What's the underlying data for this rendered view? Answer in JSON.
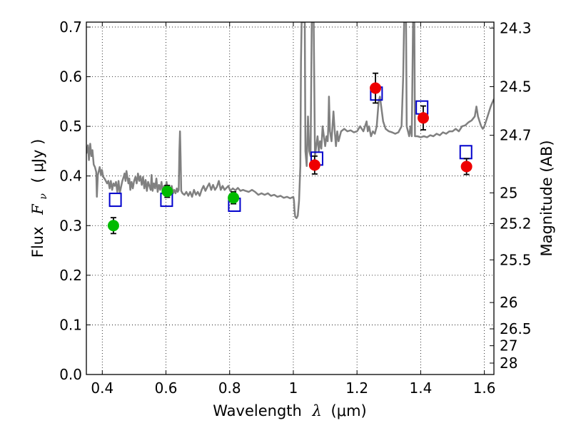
{
  "chart_data": {
    "type": "scatter",
    "xlabel": {
      "prefix": "Wavelength",
      "symbol": "λ",
      "unit": "(μm)"
    },
    "ylabel": {
      "prefix": "Flux",
      "symbol": "F",
      "subscript": "ν",
      "unit": "( μJy )"
    },
    "y2label": "Magnitude (AB)",
    "xlim": [
      0.35,
      1.63
    ],
    "ylim": [
      0.0,
      0.71
    ],
    "grid": true,
    "xticks": [
      {
        "v": 0.4,
        "label": "0.4"
      },
      {
        "v": 0.6,
        "label": "0.6"
      },
      {
        "v": 0.8,
        "label": "0.8"
      },
      {
        "v": 1.0,
        "label": "1"
      },
      {
        "v": 1.2,
        "label": "1.2"
      },
      {
        "v": 1.4,
        "label": "1.4"
      },
      {
        "v": 1.6,
        "label": "1.6"
      }
    ],
    "yticks": [
      {
        "v": 0.0,
        "label": "0.0"
      },
      {
        "v": 0.1,
        "label": "0.1"
      },
      {
        "v": 0.2,
        "label": "0.2"
      },
      {
        "v": 0.3,
        "label": "0.3"
      },
      {
        "v": 0.4,
        "label": "0.4"
      },
      {
        "v": 0.5,
        "label": "0.5"
      },
      {
        "v": 0.6,
        "label": "0.6"
      },
      {
        "v": 0.7,
        "label": "0.7"
      }
    ],
    "y2ticks": [
      {
        "label": "24.3",
        "flux": 0.698
      },
      {
        "label": "24.5",
        "flux": 0.58
      },
      {
        "label": "24.7",
        "flux": 0.482
      },
      {
        "label": "25",
        "flux": 0.366
      },
      {
        "label": "25.2",
        "flux": 0.304
      },
      {
        "label": "25.5",
        "flux": 0.231
      },
      {
        "label": "26",
        "flux": 0.145
      },
      {
        "label": "26.5",
        "flux": 0.092
      },
      {
        "label": "27",
        "flux": 0.058
      },
      {
        "label": "28",
        "flux": 0.023
      }
    ],
    "colors": {
      "spectrum": "#808080",
      "model_box": "#0000cc",
      "green_point": "#00bb00",
      "red_point": "#ee0000",
      "errorbar": "#000000"
    },
    "series": [
      {
        "kind": "line",
        "color_key": "spectrum",
        "points": [
          [
            0.35,
            0.445
          ],
          [
            0.355,
            0.462
          ],
          [
            0.358,
            0.432
          ],
          [
            0.362,
            0.465
          ],
          [
            0.366,
            0.44
          ],
          [
            0.369,
            0.452
          ],
          [
            0.373,
            0.423
          ],
          [
            0.377,
            0.418
          ],
          [
            0.381,
            0.408
          ],
          [
            0.383,
            0.358
          ],
          [
            0.386,
            0.402
          ],
          [
            0.389,
            0.41
          ],
          [
            0.392,
            0.418
          ],
          [
            0.396,
            0.402
          ],
          [
            0.399,
            0.412
          ],
          [
            0.403,
            0.398
          ],
          [
            0.407,
            0.395
          ],
          [
            0.411,
            0.39
          ],
          [
            0.415,
            0.385
          ],
          [
            0.419,
            0.39
          ],
          [
            0.423,
            0.375
          ],
          [
            0.427,
            0.39
          ],
          [
            0.431,
            0.372
          ],
          [
            0.435,
            0.385
          ],
          [
            0.439,
            0.38
          ],
          [
            0.443,
            0.388
          ],
          [
            0.447,
            0.368
          ],
          [
            0.451,
            0.39
          ],
          [
            0.455,
            0.365
          ],
          [
            0.459,
            0.378
          ],
          [
            0.463,
            0.39
          ],
          [
            0.467,
            0.398
          ],
          [
            0.47,
            0.405
          ],
          [
            0.473,
            0.39
          ],
          [
            0.476,
            0.41
          ],
          [
            0.479,
            0.398
          ],
          [
            0.482,
            0.385
          ],
          [
            0.485,
            0.395
          ],
          [
            0.488,
            0.372
          ],
          [
            0.492,
            0.388
          ],
          [
            0.496,
            0.375
          ],
          [
            0.5,
            0.39
          ],
          [
            0.504,
            0.398
          ],
          [
            0.508,
            0.385
          ],
          [
            0.512,
            0.405
          ],
          [
            0.516,
            0.39
          ],
          [
            0.52,
            0.4
          ],
          [
            0.524,
            0.382
          ],
          [
            0.528,
            0.398
          ],
          [
            0.532,
            0.375
          ],
          [
            0.536,
            0.392
          ],
          [
            0.54,
            0.37
          ],
          [
            0.544,
            0.388
          ],
          [
            0.548,
            0.38
          ],
          [
            0.552,
            0.372
          ],
          [
            0.555,
            0.402
          ],
          [
            0.558,
            0.37
          ],
          [
            0.562,
            0.385
          ],
          [
            0.566,
            0.375
          ],
          [
            0.57,
            0.395
          ],
          [
            0.574,
            0.368
          ],
          [
            0.578,
            0.382
          ],
          [
            0.582,
            0.372
          ],
          [
            0.586,
            0.388
          ],
          [
            0.59,
            0.365
          ],
          [
            0.594,
            0.38
          ],
          [
            0.598,
            0.37
          ],
          [
            0.602,
            0.388
          ],
          [
            0.606,
            0.368
          ],
          [
            0.61,
            0.378
          ],
          [
            0.614,
            0.37
          ],
          [
            0.618,
            0.38
          ],
          [
            0.622,
            0.365
          ],
          [
            0.626,
            0.372
          ],
          [
            0.63,
            0.365
          ],
          [
            0.634,
            0.375
          ],
          [
            0.637,
            0.368
          ],
          [
            0.64,
            0.372
          ],
          [
            0.642,
            0.45
          ],
          [
            0.644,
            0.49
          ],
          [
            0.646,
            0.44
          ],
          [
            0.648,
            0.37
          ],
          [
            0.652,
            0.365
          ],
          [
            0.658,
            0.362
          ],
          [
            0.664,
            0.368
          ],
          [
            0.67,
            0.36
          ],
          [
            0.676,
            0.368
          ],
          [
            0.682,
            0.358
          ],
          [
            0.688,
            0.372
          ],
          [
            0.694,
            0.362
          ],
          [
            0.7,
            0.368
          ],
          [
            0.706,
            0.36
          ],
          [
            0.712,
            0.372
          ],
          [
            0.718,
            0.38
          ],
          [
            0.724,
            0.37
          ],
          [
            0.73,
            0.378
          ],
          [
            0.736,
            0.385
          ],
          [
            0.742,
            0.372
          ],
          [
            0.748,
            0.382
          ],
          [
            0.754,
            0.372
          ],
          [
            0.76,
            0.378
          ],
          [
            0.766,
            0.39
          ],
          [
            0.772,
            0.372
          ],
          [
            0.778,
            0.38
          ],
          [
            0.784,
            0.372
          ],
          [
            0.79,
            0.376
          ],
          [
            0.796,
            0.38
          ],
          [
            0.802,
            0.37
          ],
          [
            0.81,
            0.375
          ],
          [
            0.818,
            0.371
          ],
          [
            0.826,
            0.376
          ],
          [
            0.834,
            0.37
          ],
          [
            0.842,
            0.372
          ],
          [
            0.85,
            0.37
          ],
          [
            0.86,
            0.368
          ],
          [
            0.87,
            0.372
          ],
          [
            0.88,
            0.368
          ],
          [
            0.89,
            0.362
          ],
          [
            0.9,
            0.365
          ],
          [
            0.91,
            0.362
          ],
          [
            0.92,
            0.365
          ],
          [
            0.93,
            0.36
          ],
          [
            0.94,
            0.362
          ],
          [
            0.95,
            0.358
          ],
          [
            0.96,
            0.36
          ],
          [
            0.97,
            0.356
          ],
          [
            0.98,
            0.358
          ],
          [
            0.99,
            0.355
          ],
          [
            1.0,
            0.358
          ],
          [
            1.002,
            0.35
          ],
          [
            1.004,
            0.33
          ],
          [
            1.006,
            0.318
          ],
          [
            1.01,
            0.315
          ],
          [
            1.014,
            0.32
          ],
          [
            1.018,
            0.35
          ],
          [
            1.022,
            0.42
          ],
          [
            1.024,
            0.63
          ],
          [
            1.026,
            0.71
          ],
          [
            1.03,
            0.71
          ],
          [
            1.036,
            0.71
          ],
          [
            1.038,
            0.45
          ],
          [
            1.042,
            0.42
          ],
          [
            1.046,
            0.52
          ],
          [
            1.05,
            0.45
          ],
          [
            1.054,
            0.44
          ],
          [
            1.058,
            0.71
          ],
          [
            1.064,
            0.71
          ],
          [
            1.068,
            0.44
          ],
          [
            1.072,
            0.46
          ],
          [
            1.076,
            0.48
          ],
          [
            1.08,
            0.45
          ],
          [
            1.084,
            0.47
          ],
          [
            1.088,
            0.455
          ],
          [
            1.092,
            0.5
          ],
          [
            1.096,
            0.48
          ],
          [
            1.1,
            0.46
          ],
          [
            1.104,
            0.48
          ],
          [
            1.108,
            0.47
          ],
          [
            1.11,
            0.5
          ],
          [
            1.112,
            0.56
          ],
          [
            1.115,
            0.49
          ],
          [
            1.12,
            0.47
          ],
          [
            1.126,
            0.53
          ],
          [
            1.13,
            0.49
          ],
          [
            1.134,
            0.46
          ],
          [
            1.138,
            0.49
          ],
          [
            1.142,
            0.47
          ],
          [
            1.15,
            0.49
          ],
          [
            1.16,
            0.495
          ],
          [
            1.17,
            0.49
          ],
          [
            1.18,
            0.492
          ],
          [
            1.19,
            0.488
          ],
          [
            1.2,
            0.49
          ],
          [
            1.21,
            0.5
          ],
          [
            1.22,
            0.49
          ],
          [
            1.23,
            0.51
          ],
          [
            1.234,
            0.49
          ],
          [
            1.238,
            0.5
          ],
          [
            1.244,
            0.48
          ],
          [
            1.25,
            0.49
          ],
          [
            1.256,
            0.485
          ],
          [
            1.262,
            0.5
          ],
          [
            1.268,
            0.55
          ],
          [
            1.272,
            0.56
          ],
          [
            1.276,
            0.54
          ],
          [
            1.282,
            0.51
          ],
          [
            1.29,
            0.495
          ],
          [
            1.3,
            0.49
          ],
          [
            1.31,
            0.488
          ],
          [
            1.32,
            0.485
          ],
          [
            1.33,
            0.488
          ],
          [
            1.34,
            0.5
          ],
          [
            1.345,
            0.6
          ],
          [
            1.348,
            0.71
          ],
          [
            1.354,
            0.71
          ],
          [
            1.356,
            0.5
          ],
          [
            1.36,
            0.49
          ],
          [
            1.364,
            0.48
          ],
          [
            1.368,
            0.5
          ],
          [
            1.372,
            0.48
          ],
          [
            1.376,
            0.71
          ],
          [
            1.38,
            0.71
          ],
          [
            1.382,
            0.48
          ],
          [
            1.39,
            0.48
          ],
          [
            1.4,
            0.478
          ],
          [
            1.41,
            0.48
          ],
          [
            1.42,
            0.478
          ],
          [
            1.43,
            0.482
          ],
          [
            1.44,
            0.48
          ],
          [
            1.45,
            0.485
          ],
          [
            1.46,
            0.482
          ],
          [
            1.47,
            0.488
          ],
          [
            1.48,
            0.485
          ],
          [
            1.49,
            0.49
          ],
          [
            1.5,
            0.49
          ],
          [
            1.51,
            0.495
          ],
          [
            1.52,
            0.49
          ],
          [
            1.53,
            0.5
          ],
          [
            1.54,
            0.502
          ],
          [
            1.55,
            0.508
          ],
          [
            1.56,
            0.512
          ],
          [
            1.57,
            0.52
          ],
          [
            1.575,
            0.54
          ],
          [
            1.58,
            0.52
          ],
          [
            1.585,
            0.51
          ],
          [
            1.59,
            0.5
          ],
          [
            1.595,
            0.495
          ],
          [
            1.6,
            0.5
          ],
          [
            1.605,
            0.51
          ],
          [
            1.61,
            0.52
          ],
          [
            1.615,
            0.53
          ],
          [
            1.62,
            0.54
          ],
          [
            1.625,
            0.548
          ],
          [
            1.63,
            0.555
          ]
        ]
      },
      {
        "kind": "square",
        "color_key": "model_box",
        "points": [
          [
            0.441,
            0.352
          ],
          [
            0.602,
            0.352
          ],
          [
            0.815,
            0.342
          ],
          [
            1.074,
            0.435
          ],
          [
            1.261,
            0.566
          ],
          [
            1.404,
            0.538
          ],
          [
            1.542,
            0.448
          ]
        ]
      },
      {
        "kind": "circle",
        "color_key": "green_point",
        "points": [
          [
            0.435,
            0.3,
            0.016
          ],
          [
            0.604,
            0.369,
            0.012
          ],
          [
            0.812,
            0.356,
            0.012
          ]
        ]
      },
      {
        "kind": "circle",
        "color_key": "red_point",
        "points": [
          [
            1.067,
            0.422,
            0.018
          ],
          [
            1.258,
            0.577,
            0.03
          ],
          [
            1.408,
            0.517,
            0.024
          ],
          [
            1.544,
            0.419,
            0.016
          ]
        ]
      }
    ]
  }
}
